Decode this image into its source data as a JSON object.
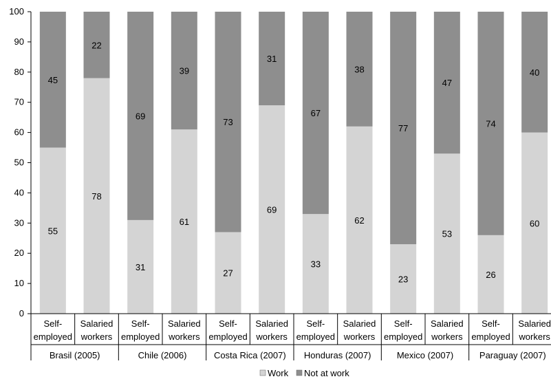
{
  "chart_data": {
    "type": "bar",
    "stacked": true,
    "title": "",
    "xlabel": "",
    "ylabel": "",
    "ylim": [
      0,
      100
    ],
    "y_ticks": [
      0,
      10,
      20,
      30,
      40,
      50,
      60,
      70,
      80,
      90,
      100
    ],
    "grid": false,
    "legend_position": "bottom",
    "groups": [
      {
        "label": "Brasil (2005)",
        "bars": [
          {
            "label": [
              "Self-",
              "employed"
            ],
            "work": 55,
            "not_at_work": 45
          },
          {
            "label": [
              "Salaried",
              "workers"
            ],
            "work": 78,
            "not_at_work": 22
          }
        ]
      },
      {
        "label": "Chile (2006)",
        "bars": [
          {
            "label": [
              "Self-",
              "employed"
            ],
            "work": 31,
            "not_at_work": 69
          },
          {
            "label": [
              "Salaried",
              "workers"
            ],
            "work": 61,
            "not_at_work": 39
          }
        ]
      },
      {
        "label": "Costa Rica (2007)",
        "bars": [
          {
            "label": [
              "Self-",
              "employed"
            ],
            "work": 27,
            "not_at_work": 73
          },
          {
            "label": [
              "Salaried",
              "workers"
            ],
            "work": 69,
            "not_at_work": 31
          }
        ]
      },
      {
        "label": "Honduras (2007)",
        "bars": [
          {
            "label": [
              "Self-",
              "employed"
            ],
            "work": 33,
            "not_at_work": 67
          },
          {
            "label": [
              "Salaried",
              "workers"
            ],
            "work": 62,
            "not_at_work": 38
          }
        ]
      },
      {
        "label": "Mexico (2007)",
        "bars": [
          {
            "label": [
              "Self-",
              "employed"
            ],
            "work": 23,
            "not_at_work": 77
          },
          {
            "label": [
              "Salaried",
              "workers"
            ],
            "work": 53,
            "not_at_work": 47
          }
        ]
      },
      {
        "label": "Paraguay (2007)",
        "bars": [
          {
            "label": [
              "Self-",
              "employed"
            ],
            "work": 26,
            "not_at_work": 74
          },
          {
            "label": [
              "Salaried",
              "workers"
            ],
            "work": 60,
            "not_at_work": 40
          }
        ]
      }
    ],
    "series": [
      {
        "key": "work",
        "name": "Work",
        "color": "#d4d4d4"
      },
      {
        "key": "not_at_work",
        "name": "Not at work",
        "color": "#8e8e8e"
      }
    ]
  }
}
